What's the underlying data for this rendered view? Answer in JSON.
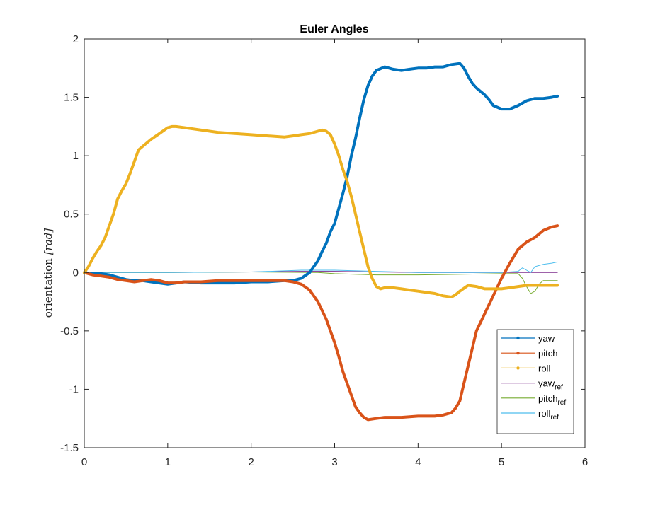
{
  "chart_data": {
    "type": "line",
    "title": "Euler Angles",
    "xlabel": "",
    "ylabel_text": "orientation",
    "ylabel_unit": "[rad]",
    "xlim": [
      0,
      6
    ],
    "ylim": [
      -1.5,
      2
    ],
    "xticks": [
      "0",
      "1",
      "2",
      "3",
      "4",
      "5",
      "6"
    ],
    "yticks": [
      "-1.5",
      "-1",
      "-0.5",
      "0",
      "0.5",
      "1",
      "1.5",
      "2"
    ],
    "grid": false,
    "legend_position": "bottom-right",
    "series": [
      {
        "name": "yaw",
        "name_base": "yaw",
        "name_sub": "",
        "color": "#0072BD",
        "style": "thick",
        "marker": true,
        "points": [
          [
            0,
            0
          ],
          [
            0.1,
            -0.01
          ],
          [
            0.2,
            -0.01
          ],
          [
            0.3,
            -0.02
          ],
          [
            0.4,
            -0.04
          ],
          [
            0.5,
            -0.06
          ],
          [
            0.6,
            -0.07
          ],
          [
            0.7,
            -0.07
          ],
          [
            0.8,
            -0.08
          ],
          [
            0.9,
            -0.09
          ],
          [
            1.0,
            -0.1
          ],
          [
            1.1,
            -0.09
          ],
          [
            1.2,
            -0.08
          ],
          [
            1.4,
            -0.09
          ],
          [
            1.6,
            -0.09
          ],
          [
            1.8,
            -0.09
          ],
          [
            2.0,
            -0.08
          ],
          [
            2.2,
            -0.08
          ],
          [
            2.4,
            -0.07
          ],
          [
            2.5,
            -0.07
          ],
          [
            2.6,
            -0.05
          ],
          [
            2.7,
            0.0
          ],
          [
            2.75,
            0.05
          ],
          [
            2.8,
            0.1
          ],
          [
            2.85,
            0.18
          ],
          [
            2.9,
            0.25
          ],
          [
            2.95,
            0.35
          ],
          [
            3.0,
            0.42
          ],
          [
            3.05,
            0.55
          ],
          [
            3.1,
            0.68
          ],
          [
            3.15,
            0.82
          ],
          [
            3.2,
            1.0
          ],
          [
            3.25,
            1.15
          ],
          [
            3.3,
            1.32
          ],
          [
            3.35,
            1.48
          ],
          [
            3.4,
            1.6
          ],
          [
            3.45,
            1.68
          ],
          [
            3.5,
            1.73
          ],
          [
            3.6,
            1.76
          ],
          [
            3.7,
            1.74
          ],
          [
            3.8,
            1.73
          ],
          [
            3.9,
            1.74
          ],
          [
            4.0,
            1.75
          ],
          [
            4.1,
            1.75
          ],
          [
            4.2,
            1.76
          ],
          [
            4.3,
            1.76
          ],
          [
            4.4,
            1.78
          ],
          [
            4.5,
            1.79
          ],
          [
            4.55,
            1.75
          ],
          [
            4.6,
            1.68
          ],
          [
            4.65,
            1.62
          ],
          [
            4.7,
            1.58
          ],
          [
            4.8,
            1.52
          ],
          [
            4.85,
            1.48
          ],
          [
            4.9,
            1.43
          ],
          [
            5.0,
            1.4
          ],
          [
            5.1,
            1.4
          ],
          [
            5.2,
            1.43
          ],
          [
            5.3,
            1.47
          ],
          [
            5.4,
            1.49
          ],
          [
            5.5,
            1.49
          ],
          [
            5.6,
            1.5
          ],
          [
            5.67,
            1.51
          ]
        ]
      },
      {
        "name": "pitch",
        "name_base": "pitch",
        "name_sub": "",
        "color": "#D95319",
        "style": "thick",
        "marker": true,
        "points": [
          [
            0,
            0
          ],
          [
            0.1,
            -0.02
          ],
          [
            0.2,
            -0.03
          ],
          [
            0.3,
            -0.04
          ],
          [
            0.4,
            -0.06
          ],
          [
            0.5,
            -0.07
          ],
          [
            0.6,
            -0.08
          ],
          [
            0.7,
            -0.07
          ],
          [
            0.8,
            -0.06
          ],
          [
            0.9,
            -0.07
          ],
          [
            1.0,
            -0.09
          ],
          [
            1.1,
            -0.09
          ],
          [
            1.2,
            -0.08
          ],
          [
            1.4,
            -0.08
          ],
          [
            1.6,
            -0.07
          ],
          [
            1.8,
            -0.07
          ],
          [
            2.0,
            -0.07
          ],
          [
            2.2,
            -0.07
          ],
          [
            2.4,
            -0.07
          ],
          [
            2.5,
            -0.08
          ],
          [
            2.6,
            -0.1
          ],
          [
            2.7,
            -0.15
          ],
          [
            2.8,
            -0.25
          ],
          [
            2.9,
            -0.4
          ],
          [
            3.0,
            -0.6
          ],
          [
            3.05,
            -0.72
          ],
          [
            3.1,
            -0.85
          ],
          [
            3.15,
            -0.95
          ],
          [
            3.2,
            -1.05
          ],
          [
            3.25,
            -1.15
          ],
          [
            3.3,
            -1.2
          ],
          [
            3.35,
            -1.24
          ],
          [
            3.4,
            -1.26
          ],
          [
            3.5,
            -1.25
          ],
          [
            3.6,
            -1.24
          ],
          [
            3.8,
            -1.24
          ],
          [
            4.0,
            -1.23
          ],
          [
            4.2,
            -1.23
          ],
          [
            4.3,
            -1.22
          ],
          [
            4.4,
            -1.2
          ],
          [
            4.45,
            -1.16
          ],
          [
            4.5,
            -1.1
          ],
          [
            4.55,
            -0.95
          ],
          [
            4.6,
            -0.8
          ],
          [
            4.65,
            -0.65
          ],
          [
            4.7,
            -0.5
          ],
          [
            4.8,
            -0.35
          ],
          [
            4.9,
            -0.2
          ],
          [
            5.0,
            -0.05
          ],
          [
            5.1,
            0.08
          ],
          [
            5.2,
            0.2
          ],
          [
            5.3,
            0.26
          ],
          [
            5.4,
            0.3
          ],
          [
            5.5,
            0.36
          ],
          [
            5.6,
            0.39
          ],
          [
            5.67,
            0.4
          ]
        ]
      },
      {
        "name": "roll",
        "name_base": "roll",
        "name_sub": "",
        "color": "#EDB120",
        "style": "thick",
        "marker": true,
        "points": [
          [
            0,
            0
          ],
          [
            0.05,
            0.05
          ],
          [
            0.1,
            0.12
          ],
          [
            0.15,
            0.18
          ],
          [
            0.2,
            0.23
          ],
          [
            0.25,
            0.3
          ],
          [
            0.3,
            0.4
          ],
          [
            0.35,
            0.5
          ],
          [
            0.4,
            0.63
          ],
          [
            0.45,
            0.7
          ],
          [
            0.5,
            0.76
          ],
          [
            0.55,
            0.85
          ],
          [
            0.6,
            0.95
          ],
          [
            0.65,
            1.05
          ],
          [
            0.7,
            1.08
          ],
          [
            0.8,
            1.14
          ],
          [
            0.9,
            1.19
          ],
          [
            1.0,
            1.24
          ],
          [
            1.05,
            1.25
          ],
          [
            1.1,
            1.25
          ],
          [
            1.2,
            1.24
          ],
          [
            1.4,
            1.22
          ],
          [
            1.6,
            1.2
          ],
          [
            1.8,
            1.19
          ],
          [
            2.0,
            1.18
          ],
          [
            2.2,
            1.17
          ],
          [
            2.4,
            1.16
          ],
          [
            2.5,
            1.17
          ],
          [
            2.6,
            1.18
          ],
          [
            2.7,
            1.19
          ],
          [
            2.8,
            1.21
          ],
          [
            2.85,
            1.22
          ],
          [
            2.9,
            1.21
          ],
          [
            2.95,
            1.18
          ],
          [
            3.0,
            1.1
          ],
          [
            3.05,
            1.0
          ],
          [
            3.1,
            0.88
          ],
          [
            3.15,
            0.78
          ],
          [
            3.2,
            0.65
          ],
          [
            3.25,
            0.5
          ],
          [
            3.3,
            0.35
          ],
          [
            3.35,
            0.2
          ],
          [
            3.4,
            0.05
          ],
          [
            3.45,
            -0.05
          ],
          [
            3.5,
            -0.12
          ],
          [
            3.55,
            -0.14
          ],
          [
            3.6,
            -0.13
          ],
          [
            3.7,
            -0.13
          ],
          [
            3.8,
            -0.14
          ],
          [
            3.9,
            -0.15
          ],
          [
            4.0,
            -0.16
          ],
          [
            4.1,
            -0.17
          ],
          [
            4.2,
            -0.18
          ],
          [
            4.3,
            -0.2
          ],
          [
            4.4,
            -0.21
          ],
          [
            4.45,
            -0.19
          ],
          [
            4.5,
            -0.16
          ],
          [
            4.6,
            -0.11
          ],
          [
            4.7,
            -0.12
          ],
          [
            4.8,
            -0.14
          ],
          [
            4.9,
            -0.14
          ],
          [
            5.0,
            -0.14
          ],
          [
            5.1,
            -0.13
          ],
          [
            5.2,
            -0.12
          ],
          [
            5.3,
            -0.11
          ],
          [
            5.4,
            -0.11
          ],
          [
            5.5,
            -0.11
          ],
          [
            5.6,
            -0.11
          ],
          [
            5.67,
            -0.11
          ]
        ]
      },
      {
        "name": "yaw_ref",
        "name_base": "yaw",
        "name_sub": "ref",
        "color": "#7E2F8E",
        "style": "thin",
        "marker": false,
        "points": [
          [
            0,
            0
          ],
          [
            1.0,
            0
          ],
          [
            2.0,
            0.005
          ],
          [
            2.6,
            0.01
          ],
          [
            3.0,
            0.01
          ],
          [
            3.5,
            0.005
          ],
          [
            4.0,
            0
          ],
          [
            5.0,
            0
          ],
          [
            5.67,
            0
          ]
        ]
      },
      {
        "name": "pitch_ref",
        "name_base": "pitch",
        "name_sub": "ref",
        "color": "#77AC30",
        "style": "thin",
        "marker": false,
        "points": [
          [
            0,
            0
          ],
          [
            1.0,
            0
          ],
          [
            2.0,
            0.005
          ],
          [
            2.8,
            0.0
          ],
          [
            3.0,
            -0.01
          ],
          [
            3.5,
            -0.02
          ],
          [
            4.0,
            -0.02
          ],
          [
            5.0,
            -0.01
          ],
          [
            5.2,
            -0.01
          ],
          [
            5.25,
            -0.05
          ],
          [
            5.3,
            -0.12
          ],
          [
            5.35,
            -0.18
          ],
          [
            5.4,
            -0.16
          ],
          [
            5.45,
            -0.1
          ],
          [
            5.5,
            -0.07
          ],
          [
            5.67,
            -0.07
          ]
        ]
      },
      {
        "name": "roll_ref",
        "name_base": "roll",
        "name_sub": "ref",
        "color": "#4DBEEE",
        "style": "thin",
        "marker": false,
        "points": [
          [
            0,
            0
          ],
          [
            1.0,
            0
          ],
          [
            2.0,
            0.005
          ],
          [
            2.6,
            0.02
          ],
          [
            3.0,
            0.02
          ],
          [
            3.5,
            0.01
          ],
          [
            4.0,
            0.0
          ],
          [
            5.0,
            0.0
          ],
          [
            5.2,
            0.01
          ],
          [
            5.25,
            0.04
          ],
          [
            5.3,
            0.02
          ],
          [
            5.35,
            0.0
          ],
          [
            5.4,
            0.05
          ],
          [
            5.5,
            0.07
          ],
          [
            5.6,
            0.08
          ],
          [
            5.67,
            0.09
          ]
        ]
      }
    ]
  }
}
